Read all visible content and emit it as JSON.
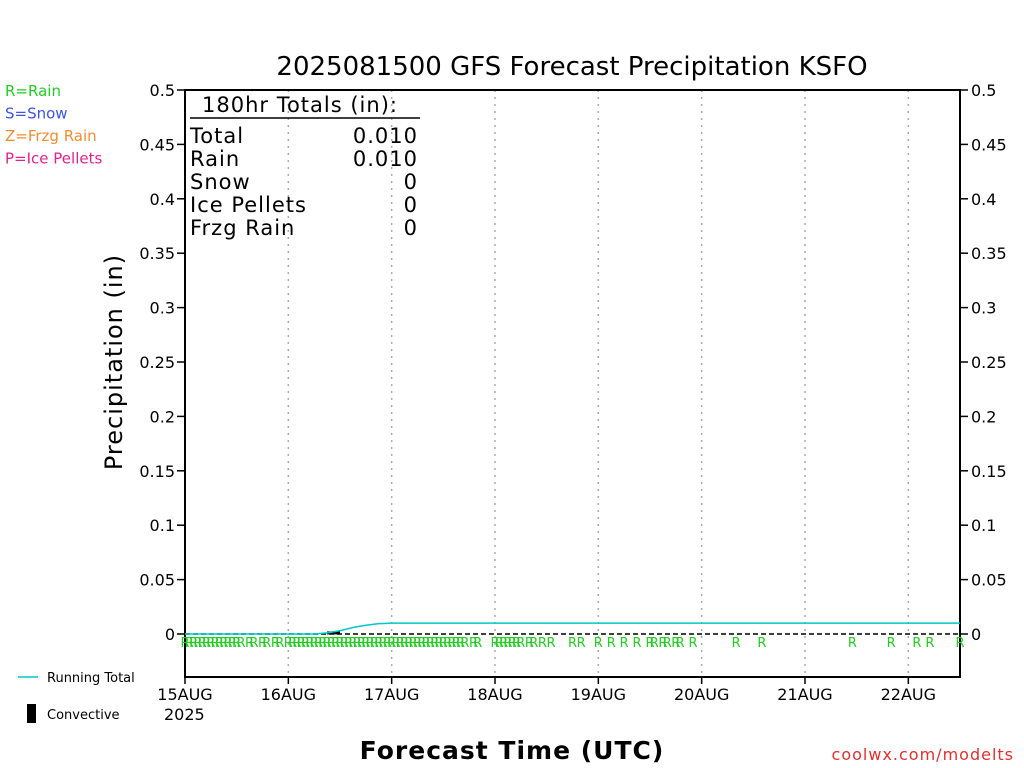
{
  "chart_data": {
    "type": "line",
    "title": "2025081500 GFS Forecast Precipitation KSFO",
    "ylabel": "Precipitation (in)",
    "xlabel": "Forecast Time (UTC)",
    "ylim": [
      0,
      0.5
    ],
    "y_ticks": [
      "0",
      "0.05",
      "0.1",
      "0.15",
      "0.2",
      "0.25",
      "0.3",
      "0.35",
      "0.4",
      "0.45",
      "0.5"
    ],
    "x_ticks": [
      "15AUG",
      "16AUG",
      "17AUG",
      "18AUG",
      "19AUG",
      "20AUG",
      "21AUG",
      "22AUG"
    ],
    "x_year": "2025",
    "xlim_hours": [
      0,
      180
    ],
    "grid": "dotted-vertical",
    "series": [
      {
        "name": "Running Total",
        "color": "#00c8c8",
        "x_hours": [
          0,
          30,
          33,
          36,
          39,
          42,
          45,
          48,
          180
        ],
        "y": [
          0,
          0,
          0.001,
          0.003,
          0.006,
          0.008,
          0.0095,
          0.01,
          0.01
        ]
      }
    ],
    "convective": {
      "name": "Convective",
      "color": "#000000",
      "x_hours": [
        33,
        36
      ],
      "y": [
        0.001,
        0.001
      ]
    },
    "ptype_marker": "R",
    "ptype_hours": [
      0,
      1,
      2,
      3,
      4,
      5,
      6,
      7,
      8,
      9,
      10,
      11,
      12,
      13,
      15,
      16,
      18,
      19,
      21,
      22,
      24,
      25,
      26,
      27,
      28,
      29,
      30,
      31,
      32,
      33,
      34,
      35,
      36,
      37,
      38,
      39,
      40,
      41,
      42,
      43,
      44,
      45,
      46,
      47,
      48,
      49,
      50,
      51,
      52,
      53,
      54,
      55,
      56,
      57,
      58,
      59,
      60,
      61,
      62,
      63,
      64,
      65,
      67,
      68,
      72,
      73,
      74,
      75,
      76,
      77,
      78,
      80,
      81,
      83,
      85,
      90,
      92,
      96,
      99,
      102,
      105,
      108,
      109,
      111,
      112,
      114,
      115,
      118,
      128,
      134,
      155,
      164,
      170,
      173,
      180
    ],
    "legend_items": [
      {
        "label": "R=Rain",
        "color": "#22cc22"
      },
      {
        "label": "S=Snow",
        "color": "#3b55e0"
      },
      {
        "label": "Z=Frzg Rain",
        "color": "#f08c32"
      },
      {
        "label": "P=Ice Pellets",
        "color": "#e0238c"
      }
    ],
    "totals": {
      "header": "180hr Totals (in):",
      "rows": [
        {
          "label": "Total",
          "value": "0.010"
        },
        {
          "label": "Rain",
          "value": "0.010"
        },
        {
          "label": "Snow",
          "value": "0"
        },
        {
          "label": "Ice Pellets",
          "value": "0"
        },
        {
          "label": "Frzg Rain",
          "value": "0"
        }
      ]
    },
    "key": {
      "running_total": "Running Total",
      "convective": "Convective"
    },
    "credit": "coolwx.com/modelts"
  }
}
